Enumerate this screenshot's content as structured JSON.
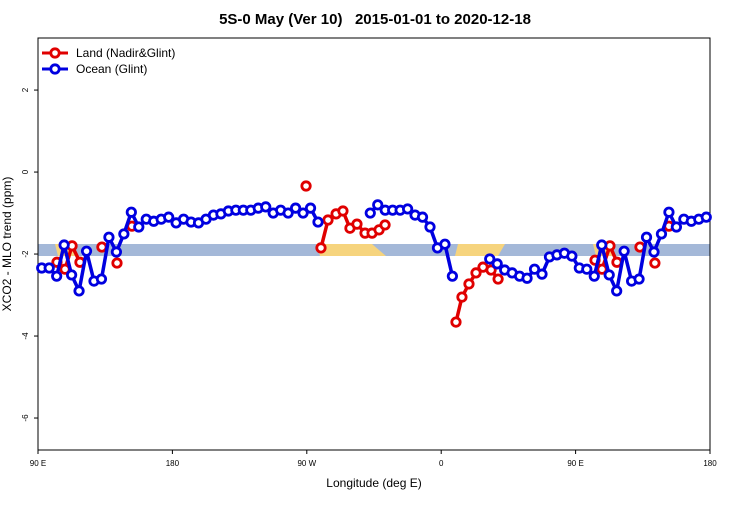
{
  "chart_data": {
    "type": "line",
    "title": "5S-0 May (Ver 10)   2015-01-01 to 2020-12-18",
    "x_label": "Longitude (deg E)",
    "y_label": "XCO2 - MLO trend (ppm)",
    "xlim": [
      90,
      540
    ],
    "ylim": [
      -6.78,
      3.27
    ],
    "xticks": [
      {
        "value": 90,
        "label": "90 E"
      },
      180,
      {
        "value": 270,
        "label": "90 W"
      },
      {
        "value": 360,
        "label": "0"
      },
      {
        "value": 450,
        "label": "90 E"
      },
      {
        "value": 540,
        "label": "180"
      }
    ],
    "yticks": [
      2,
      0,
      -2,
      -4,
      -6
    ],
    "legend": "top-left",
    "series": [
      {
        "name": "Land (Nadir&Glint)",
        "color": "#e00000",
        "x": [
          102.7,
          108.1,
          112.8,
          118.1,
          null,
          132.8,
          null,
          142.9,
          null,
          152.9,
          null,
          269.5,
          null,
          279.5,
          284.2,
          289.6,
          294.2,
          298.9,
          303.6,
          309.0,
          313.7,
          318.4,
          322.4,
          null,
          369.9,
          373.9,
          378.6,
          383.3,
          388.0,
          393.4,
          398.1,
          null,
          463.0,
          467.7,
          473.0,
          477.7,
          null,
          493.1,
          null,
          503.1,
          null,
          512.5
        ],
        "values": [
          -2.2,
          -2.37,
          -1.8,
          -2.2,
          null,
          -1.83,
          null,
          -2.22,
          null,
          -1.32,
          null,
          -0.34,
          null,
          -1.85,
          -1.17,
          -1.02,
          -0.95,
          -1.37,
          -1.27,
          -1.49,
          -1.49,
          -1.41,
          -1.29,
          null,
          -3.66,
          -3.05,
          -2.73,
          -2.46,
          -2.32,
          -2.39,
          -2.61,
          null,
          -2.15,
          -2.37,
          -1.8,
          -2.2,
          null,
          -1.83,
          null,
          -2.22,
          null,
          -1.32
        ]
      },
      {
        "name": "Ocean (Glint)",
        "color": "#0000e0",
        "x": [
          92.5,
          97.5,
          102.5,
          107.5,
          112.5,
          117.5,
          122.5,
          127.5,
          132.5,
          137.5,
          142.5,
          147.5,
          152.5,
          157.5,
          162.5,
          167.5,
          172.5,
          177.5,
          182.5,
          187.5,
          192.5,
          197.5,
          202.5,
          207.5,
          212.5,
          217.5,
          222.5,
          227.5,
          232.5,
          237.5,
          242.5,
          247.5,
          252.5,
          257.5,
          262.5,
          267.5,
          272.5,
          277.5,
          null,
          312.5,
          317.5,
          322.5,
          327.5,
          332.5,
          337.5,
          342.5,
          347.5,
          352.5,
          357.5,
          362.5,
          367.5,
          null,
          392.5,
          397.5,
          402.5,
          407.5,
          412.5,
          417.5,
          422.5,
          427.5,
          432.5,
          437.5,
          442.5,
          447.5,
          452.5,
          457.5,
          462.5,
          467.5,
          472.5,
          477.5,
          482.5,
          487.5,
          492.5,
          497.5,
          502.5,
          507.5,
          512.5,
          517.5,
          522.5,
          527.5,
          532.5,
          537.5
        ],
        "values": [
          -2.34,
          -2.34,
          -2.54,
          -1.78,
          -2.51,
          -2.9,
          -1.93,
          -2.66,
          -2.61,
          -1.59,
          -1.95,
          -1.51,
          -0.98,
          -1.34,
          -1.15,
          -1.2,
          -1.15,
          -1.1,
          -1.24,
          -1.15,
          -1.22,
          -1.24,
          -1.15,
          -1.05,
          -1.02,
          -0.95,
          -0.93,
          -0.93,
          -0.93,
          -0.88,
          -0.85,
          -1.0,
          -0.93,
          -1.0,
          -0.88,
          -1.0,
          -0.88,
          -1.22,
          null,
          -1.0,
          -0.8,
          -0.93,
          -0.93,
          -0.93,
          -0.9,
          -1.05,
          -1.1,
          -1.34,
          -1.85,
          -1.76,
          -2.54,
          null,
          -2.12,
          -2.24,
          -2.39,
          -2.46,
          -2.54,
          -2.59,
          -2.37,
          -2.49,
          -2.07,
          -2.02,
          -1.98,
          -2.05,
          -2.34,
          -2.37,
          -2.54,
          -1.78,
          -2.51,
          -2.9,
          -1.93,
          -2.66,
          -2.61,
          -1.59,
          -1.95,
          -1.51,
          -0.98,
          -1.34,
          -1.15,
          -1.2,
          -1.15,
          -1.1
        ]
      }
    ]
  }
}
